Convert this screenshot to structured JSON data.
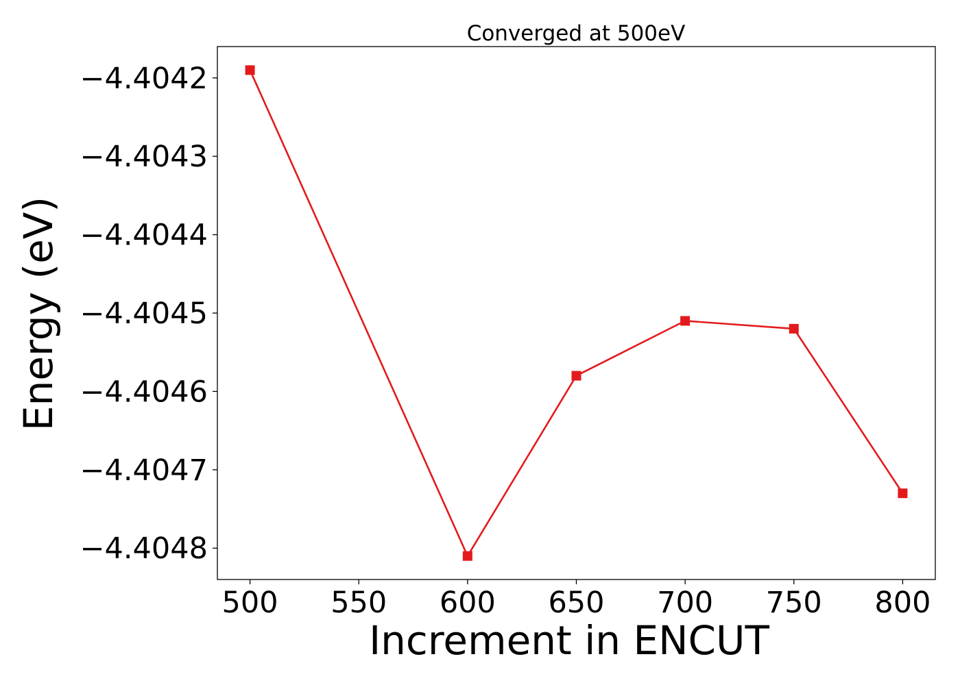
{
  "chart_data": {
    "type": "line",
    "title": "Converged at 500eV",
    "xlabel": "Increment in ENCUT",
    "ylabel": "Energy (eV)",
    "xlim": [
      485,
      815
    ],
    "ylim": [
      -4.40484,
      -4.40416
    ],
    "xticks": [
      500,
      550,
      600,
      650,
      700,
      750,
      800
    ],
    "xtick_labels": [
      "500",
      "550",
      "600",
      "650",
      "700",
      "750",
      "800"
    ],
    "yticks": [
      -4.4042,
      -4.4043,
      -4.4044,
      -4.4045,
      -4.4046,
      -4.4047,
      -4.4048
    ],
    "ytick_labels": [
      "−4.4042",
      "−4.4043",
      "−4.4044",
      "−4.4045",
      "−4.4046",
      "−4.4047",
      "−4.4048"
    ],
    "grid": false,
    "series": [
      {
        "color": "#e31a1c",
        "marker": "square",
        "x": [
          500,
          600,
          650,
          700,
          750,
          800
        ],
        "y": [
          -4.40419,
          -4.40481,
          -4.40458,
          -4.40451,
          -4.40452,
          -4.40473
        ]
      }
    ]
  }
}
